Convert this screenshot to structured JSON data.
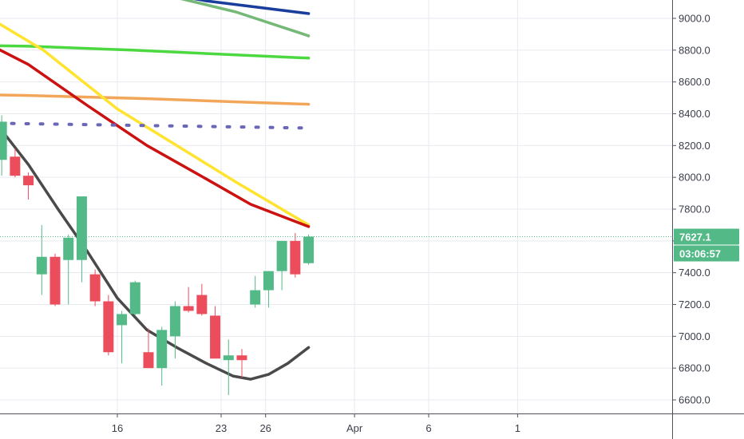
{
  "chart_data": {
    "type": "candlestick",
    "title": "",
    "xlabel": "",
    "ylabel": "",
    "ylim": [
      6520,
      9130
    ],
    "grid": true,
    "x_ticks": [
      {
        "label": "16",
        "day": 16
      },
      {
        "label": "23",
        "day": 23
      },
      {
        "label": "26",
        "day": 26
      },
      {
        "label": "Apr",
        "day": 32
      },
      {
        "label": "6",
        "day": 37
      },
      {
        "label": "1",
        "day": 43
      }
    ],
    "y_ticks": [
      6600,
      6800,
      7000,
      7200,
      7400,
      7600,
      7800,
      8000,
      8200,
      8400,
      8600,
      8800,
      9000
    ],
    "candles": [
      {
        "day": 8.2,
        "o": 8110,
        "h": 8390,
        "l": 8010,
        "c": 8350
      },
      {
        "day": 9.1,
        "o": 8130,
        "h": 8180,
        "l": 8000,
        "c": 8010
      },
      {
        "day": 10.0,
        "o": 8010,
        "h": 8030,
        "l": 7860,
        "c": 7950
      },
      {
        "day": 10.9,
        "o": 7390,
        "h": 7700,
        "l": 7260,
        "c": 7500
      },
      {
        "day": 11.8,
        "o": 7500,
        "h": 7520,
        "l": 7190,
        "c": 7200
      },
      {
        "day": 12.7,
        "o": 7480,
        "h": 7640,
        "l": 7200,
        "c": 7620
      },
      {
        "day": 13.6,
        "o": 7480,
        "h": 7880,
        "l": 7340,
        "c": 7880
      },
      {
        "day": 14.5,
        "o": 7390,
        "h": 7420,
        "l": 7190,
        "c": 7220
      },
      {
        "day": 15.4,
        "o": 7220,
        "h": 7260,
        "l": 6880,
        "c": 6900
      },
      {
        "day": 16.3,
        "o": 7070,
        "h": 7160,
        "l": 6830,
        "c": 7140
      },
      {
        "day": 17.2,
        "o": 7140,
        "h": 7350,
        "l": 7130,
        "c": 7340
      },
      {
        "day": 18.1,
        "o": 6900,
        "h": 7050,
        "l": 6800,
        "c": 6800
      },
      {
        "day": 19.0,
        "o": 6800,
        "h": 7060,
        "l": 6690,
        "c": 7040
      },
      {
        "day": 19.9,
        "o": 7000,
        "h": 7220,
        "l": 6860,
        "c": 7190
      },
      {
        "day": 20.8,
        "o": 7190,
        "h": 7310,
        "l": 7150,
        "c": 7160
      },
      {
        "day": 21.7,
        "o": 7260,
        "h": 7330,
        "l": 7130,
        "c": 7140
      },
      {
        "day": 22.6,
        "o": 7130,
        "h": 7190,
        "l": 6860,
        "c": 6860
      },
      {
        "day": 23.5,
        "o": 6850,
        "h": 6980,
        "l": 6630,
        "c": 6880
      },
      {
        "day": 24.4,
        "o": 6880,
        "h": 6920,
        "l": 6740,
        "c": 6850
      },
      {
        "day": 25.3,
        "o": 7200,
        "h": 7380,
        "l": 7180,
        "c": 7290
      },
      {
        "day": 26.2,
        "o": 7290,
        "h": 7410,
        "l": 7180,
        "c": 7410
      },
      {
        "day": 27.1,
        "o": 7410,
        "h": 7600,
        "l": 7290,
        "c": 7600
      },
      {
        "day": 28.0,
        "o": 7600,
        "h": 7650,
        "l": 7370,
        "c": 7390
      },
      {
        "day": 28.9,
        "o": 7460,
        "h": 7640,
        "l": 7450,
        "c": 7627
      }
    ],
    "series": [
      {
        "color": "#1a3e9c",
        "points": [
          [
            16.0,
            9210
          ],
          [
            22.0,
            9110
          ],
          [
            28.9,
            9030
          ]
        ]
      },
      {
        "color": "#75b877",
        "points": [
          [
            20.0,
            9130
          ],
          [
            24.0,
            9040
          ],
          [
            28.9,
            8890
          ]
        ]
      },
      {
        "color": "#4cd840",
        "points": [
          [
            0,
            8840
          ],
          [
            10,
            8825
          ],
          [
            17,
            8800
          ],
          [
            24,
            8770
          ],
          [
            28.9,
            8750
          ]
        ]
      },
      {
        "color": "#f2a65a",
        "points": [
          [
            0,
            8530
          ],
          [
            10,
            8515
          ],
          [
            18,
            8495
          ],
          [
            24,
            8475
          ],
          [
            28.9,
            8460
          ]
        ]
      },
      {
        "color": "#ffe32e",
        "points": [
          [
            0,
            9250
          ],
          [
            6,
            9080
          ],
          [
            11,
            8800
          ],
          [
            16,
            8430
          ],
          [
            20,
            8200
          ],
          [
            24,
            7970
          ],
          [
            28.9,
            7700
          ]
        ]
      },
      {
        "color": "#cc1111",
        "points": [
          [
            0,
            9040
          ],
          [
            6,
            8900
          ],
          [
            10,
            8710
          ],
          [
            14,
            8450
          ],
          [
            18,
            8200
          ],
          [
            22,
            7990
          ],
          [
            25,
            7830
          ],
          [
            28.9,
            7690
          ]
        ]
      },
      {
        "color": "#4a4a4a",
        "points": [
          [
            0,
            8380
          ],
          [
            8,
            8320
          ],
          [
            10,
            8080
          ],
          [
            12,
            7800
          ],
          [
            14,
            7530
          ],
          [
            16,
            7240
          ],
          [
            18,
            7040
          ],
          [
            20,
            6930
          ],
          [
            22,
            6830
          ],
          [
            23.8,
            6750
          ],
          [
            25.0,
            6730
          ],
          [
            26.2,
            6760
          ],
          [
            27.5,
            6830
          ],
          [
            28.9,
            6930
          ]
        ]
      },
      {
        "color": "#6b67b8",
        "style": "dotted",
        "points": [
          [
            7.9,
            8340
          ],
          [
            28.9,
            8310
          ]
        ]
      }
    ],
    "current_price": "7627.1",
    "countdown": "03:06:57",
    "colors": {
      "up": "#53b987",
      "down": "#eb4d5c",
      "grid": "#e7eaef",
      "axis_text": "#3a3e4a",
      "price_line": "#53b987"
    }
  }
}
